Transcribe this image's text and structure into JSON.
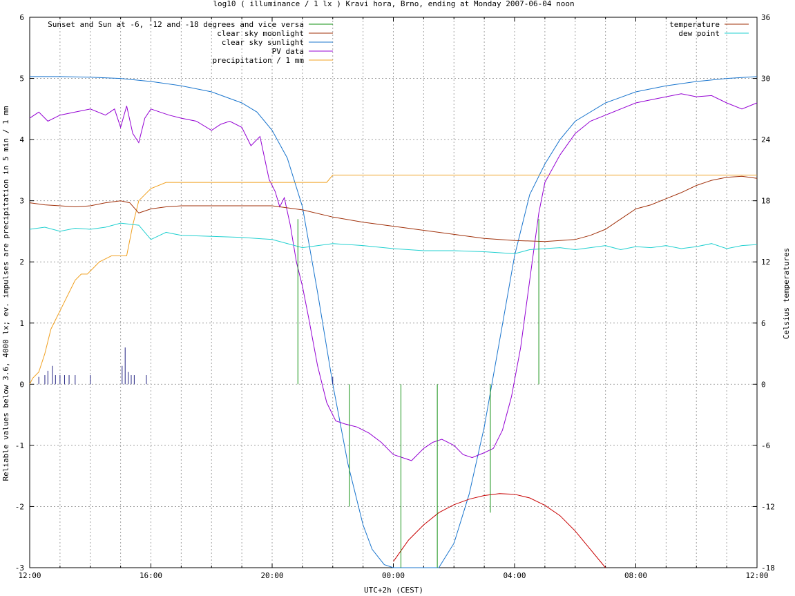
{
  "chart_data": {
    "type": "line",
    "title": "log10 ( illuminance / 1 lx ) Kravi hora, Brno, ending at Monday 2007-06-04 noon",
    "xlabel": "UTC+2h (CEST)",
    "ylabel": "Reliable values below 3.6, 4000 lx; ev. impulses are precipitation in 5 min / 1 mm",
    "y2label": "Celsius temperatures",
    "x_unit": "hours since 12:00 (start of window)",
    "xlim": [
      0,
      24
    ],
    "ylim": [
      -3,
      6
    ],
    "y2lim": [
      -18,
      36
    ],
    "grid": true,
    "x_ticks": [
      {
        "v": 0,
        "label": "12:00"
      },
      {
        "v": 4,
        "label": "16:00"
      },
      {
        "v": 8,
        "label": "20:00"
      },
      {
        "v": 12,
        "label": "00:00"
      },
      {
        "v": 16,
        "label": "04:00"
      },
      {
        "v": 20,
        "label": "08:00"
      },
      {
        "v": 24,
        "label": "12:00"
      }
    ],
    "y_ticks": [
      -3,
      -2,
      -1,
      0,
      1,
      2,
      3,
      4,
      5,
      6
    ],
    "y2_ticks": [
      -18,
      -12,
      -6,
      0,
      6,
      12,
      18,
      24,
      30,
      36
    ],
    "legend_left": [
      {
        "name": "Sunset and Sun at -6, -12 and -18 degrees and vice versa",
        "color": "#109010"
      },
      {
        "name": "clear sky moonlight",
        "color": "#a0300a"
      },
      {
        "name": "clear sky sunlight",
        "color": "#1874cd"
      },
      {
        "name": "PV data",
        "color": "#9400d3"
      },
      {
        "name": "precipitation / 1 mm",
        "color": "#f0a020"
      }
    ],
    "legend_right": [
      {
        "name": "temperature",
        "color": "#a0300a"
      },
      {
        "name": "dew point",
        "color": "#20d0d0"
      }
    ],
    "sun_markers": [
      {
        "x": 8.85,
        "y_top": 2.7
      },
      {
        "x": 10.55,
        "y_top": -2.0
      },
      {
        "x": 12.25,
        "y_top": -3.0
      },
      {
        "x": 13.45,
        "y_top": -3.0
      },
      {
        "x": 15.2,
        "y_top": -2.1
      },
      {
        "x": 16.8,
        "y_top": 2.7
      }
    ],
    "series": [
      {
        "name": "clear sky sunlight",
        "color": "#1874cd",
        "x": [
          0,
          1,
          2,
          3,
          4,
          5,
          6,
          7,
          7.5,
          8,
          8.5,
          9,
          9.5,
          10,
          10.5,
          11,
          11.3,
          11.7,
          12,
          13.5,
          14,
          14.5,
          15,
          15.5,
          16,
          16.5,
          17,
          17.5,
          18,
          19,
          20,
          21,
          22,
          23,
          24
        ],
        "y": [
          5.03,
          5.03,
          5.02,
          5.0,
          4.95,
          4.88,
          4.78,
          4.6,
          4.45,
          4.15,
          3.7,
          2.9,
          1.5,
          0.0,
          -1.3,
          -2.3,
          -2.7,
          -2.95,
          -3.0,
          -3.0,
          -2.6,
          -1.8,
          -0.7,
          0.7,
          2.1,
          3.1,
          3.6,
          4.0,
          4.3,
          4.6,
          4.78,
          4.88,
          4.95,
          5.0,
          5.03
        ]
      },
      {
        "name": "clear sky moonlight",
        "color": "#c80000",
        "x": [
          12,
          12.5,
          13,
          13.5,
          14,
          14.5,
          15,
          15.5,
          16,
          16.5,
          17,
          17.5,
          18,
          18.5,
          19
        ],
        "y": [
          -2.9,
          -2.55,
          -2.3,
          -2.1,
          -1.97,
          -1.88,
          -1.82,
          -1.79,
          -1.8,
          -1.86,
          -1.98,
          -2.15,
          -2.4,
          -2.7,
          -3.0
        ]
      },
      {
        "name": "PV data",
        "color": "#9400d3",
        "x": [
          0,
          0.3,
          0.6,
          1,
          1.5,
          2,
          2.5,
          2.8,
          3,
          3.2,
          3.4,
          3.6,
          3.8,
          4,
          4.3,
          4.6,
          5,
          5.5,
          6,
          6.3,
          6.6,
          7,
          7.3,
          7.6,
          7.9,
          8.1,
          8.25,
          8.4,
          8.6,
          8.8,
          9,
          9.2,
          9.5,
          9.8,
          10.1,
          10.4,
          10.8,
          11.2,
          11.6,
          12,
          12.3,
          12.6,
          13,
          13.3,
          13.6,
          14,
          14.3,
          14.6,
          15,
          15.3,
          15.6,
          15.9,
          16.2,
          16.5,
          16.8,
          17,
          17.5,
          18,
          18.5,
          19,
          19.5,
          20,
          20.5,
          21,
          21.5,
          22,
          22.5,
          23,
          23.5,
          24
        ],
        "y": [
          4.35,
          4.45,
          4.3,
          4.4,
          4.45,
          4.5,
          4.4,
          4.5,
          4.2,
          4.55,
          4.1,
          3.95,
          4.35,
          4.5,
          4.45,
          4.4,
          4.35,
          4.3,
          4.15,
          4.25,
          4.3,
          4.2,
          3.9,
          4.05,
          3.35,
          3.15,
          2.9,
          3.05,
          2.6,
          2.0,
          1.6,
          1.1,
          0.3,
          -0.3,
          -0.6,
          -0.65,
          -0.7,
          -0.8,
          -0.95,
          -1.15,
          -1.2,
          -1.25,
          -1.05,
          -0.95,
          -0.9,
          -1.0,
          -1.15,
          -1.2,
          -1.12,
          -1.05,
          -0.75,
          -0.2,
          0.6,
          1.7,
          2.8,
          3.3,
          3.75,
          4.1,
          4.3,
          4.4,
          4.5,
          4.6,
          4.65,
          4.7,
          4.75,
          4.7,
          4.72,
          4.6,
          4.5,
          4.6
        ]
      },
      {
        "name": "precipitation / 1 mm",
        "color": "#f0a020",
        "x": [
          0,
          0.1,
          0.3,
          0.5,
          0.7,
          0.9,
          1.1,
          1.3,
          1.5,
          1.7,
          1.9,
          2.1,
          2.3,
          2.5,
          2.7,
          3.0,
          3.2,
          3.4,
          3.6,
          3.8,
          4.0,
          4.5,
          5.0,
          6.0,
          7.0,
          8.0,
          9.0,
          9.5,
          9.8,
          10.0,
          12.0,
          16.0,
          20.0,
          24.0
        ],
        "y": [
          0.0,
          0.1,
          0.2,
          0.5,
          0.9,
          1.1,
          1.3,
          1.5,
          1.7,
          1.8,
          1.8,
          1.9,
          2.0,
          2.05,
          2.1,
          2.1,
          2.1,
          2.6,
          3.0,
          3.1,
          3.2,
          3.3,
          3.3,
          3.3,
          3.3,
          3.3,
          3.3,
          3.3,
          3.3,
          3.42,
          3.42,
          3.42,
          3.42,
          3.42
        ]
      },
      {
        "name": "temperature",
        "color": "#a0300a",
        "axis": "y2",
        "x": [
          0,
          0.5,
          1,
          1.5,
          2,
          2.5,
          3,
          3.3,
          3.6,
          4,
          4.5,
          5,
          6,
          7,
          8,
          9,
          10,
          11,
          12,
          13,
          14,
          15,
          16,
          17,
          18,
          18.5,
          19,
          19.5,
          20,
          20.5,
          21,
          21.5,
          22,
          22.5,
          23,
          23.5,
          24
        ],
        "y": [
          17.8,
          17.6,
          17.5,
          17.4,
          17.5,
          17.8,
          18.0,
          17.8,
          16.8,
          17.2,
          17.4,
          17.5,
          17.5,
          17.5,
          17.5,
          17.1,
          16.4,
          15.9,
          15.5,
          15.1,
          14.7,
          14.3,
          14.1,
          14.0,
          14.2,
          14.6,
          15.2,
          16.2,
          17.2,
          17.6,
          18.2,
          18.8,
          19.5,
          20.0,
          20.3,
          20.4,
          20.2
        ]
      },
      {
        "name": "dew point",
        "color": "#20d0d0",
        "axis": "y2",
        "x": [
          0,
          0.5,
          1,
          1.5,
          2,
          2.5,
          3,
          3.3,
          3.6,
          4,
          4.5,
          5,
          6,
          7,
          8,
          9,
          10,
          11,
          12,
          13,
          14,
          15,
          16,
          16.5,
          17,
          17.5,
          18,
          18.5,
          19,
          19.5,
          20,
          20.5,
          21,
          21.5,
          22,
          22.5,
          23,
          23.5,
          24
        ],
        "y": [
          15.2,
          15.4,
          15.0,
          15.3,
          15.2,
          15.4,
          15.8,
          15.7,
          15.6,
          14.2,
          14.9,
          14.6,
          14.5,
          14.4,
          14.2,
          13.4,
          13.8,
          13.6,
          13.3,
          13.1,
          13.1,
          13.0,
          12.8,
          13.2,
          13.3,
          13.4,
          13.2,
          13.4,
          13.6,
          13.2,
          13.5,
          13.4,
          13.6,
          13.3,
          13.5,
          13.8,
          13.3,
          13.6,
          13.7
        ]
      }
    ],
    "impulses": {
      "color": "#202080",
      "x": [
        0.3,
        0.5,
        0.6,
        0.75,
        0.85,
        1.0,
        1.15,
        1.3,
        1.5,
        2.0,
        3.05,
        3.15,
        3.25,
        3.35,
        3.45,
        3.85,
        10.0
      ],
      "y": [
        0.12,
        0.15,
        0.22,
        0.3,
        0.15,
        0.15,
        0.15,
        0.15,
        0.15,
        0.15,
        0.3,
        0.6,
        0.2,
        0.15,
        0.15,
        0.15,
        0.12
      ]
    }
  }
}
